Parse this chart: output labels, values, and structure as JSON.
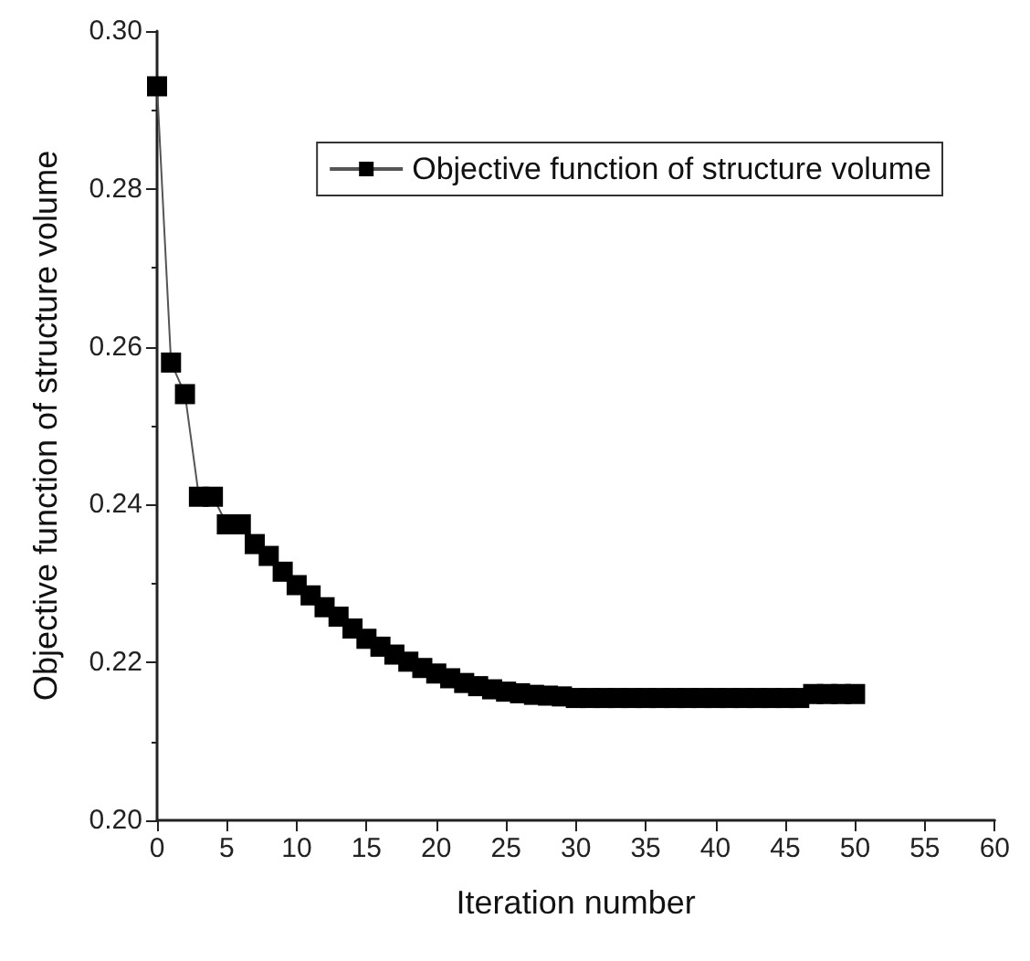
{
  "chart_data": {
    "type": "line",
    "xlabel": "Iteration number",
    "ylabel": "Objective function of structure volume",
    "x": [
      0,
      1,
      2,
      3,
      4,
      5,
      6,
      7,
      8,
      9,
      10,
      11,
      12,
      13,
      14,
      15,
      16,
      17,
      18,
      19,
      20,
      21,
      22,
      23,
      24,
      25,
      26,
      27,
      28,
      29,
      30,
      31,
      32,
      33,
      34,
      35,
      36,
      37,
      38,
      39,
      40,
      41,
      42,
      43,
      44,
      45,
      46,
      47,
      48,
      49,
      50
    ],
    "series": [
      {
        "name": "Objective function of structure volume",
        "color": "#000000",
        "values": [
          0.293,
          0.258,
          0.254,
          0.241,
          0.241,
          0.2375,
          0.2375,
          0.235,
          0.2335,
          0.2315,
          0.2298,
          0.2285,
          0.227,
          0.2258,
          0.2243,
          0.223,
          0.222,
          0.221,
          0.2201,
          0.2193,
          0.2186,
          0.218,
          0.2174,
          0.217,
          0.2166,
          0.2163,
          0.2161,
          0.2159,
          0.2158,
          0.2157,
          0.2155,
          0.2155,
          0.2155,
          0.2155,
          0.2155,
          0.2155,
          0.2155,
          0.2155,
          0.2155,
          0.2155,
          0.2155,
          0.2155,
          0.2155,
          0.2155,
          0.2155,
          0.2155,
          0.2155,
          0.216,
          0.216,
          0.216,
          0.216
        ]
      }
    ],
    "xlim": [
      0,
      60
    ],
    "xticks": [
      0,
      5,
      10,
      15,
      20,
      25,
      30,
      35,
      40,
      45,
      50,
      55,
      60
    ],
    "ylim": [
      0.2,
      0.3
    ],
    "yticks": [
      {
        "value": 0.2,
        "label": "0.20"
      },
      0.22,
      0.24,
      0.26,
      0.28,
      {
        "value": 0.3,
        "label": "0.30"
      }
    ],
    "legend": "top right",
    "marker": "square",
    "line_style": "solid",
    "grid": false
  }
}
